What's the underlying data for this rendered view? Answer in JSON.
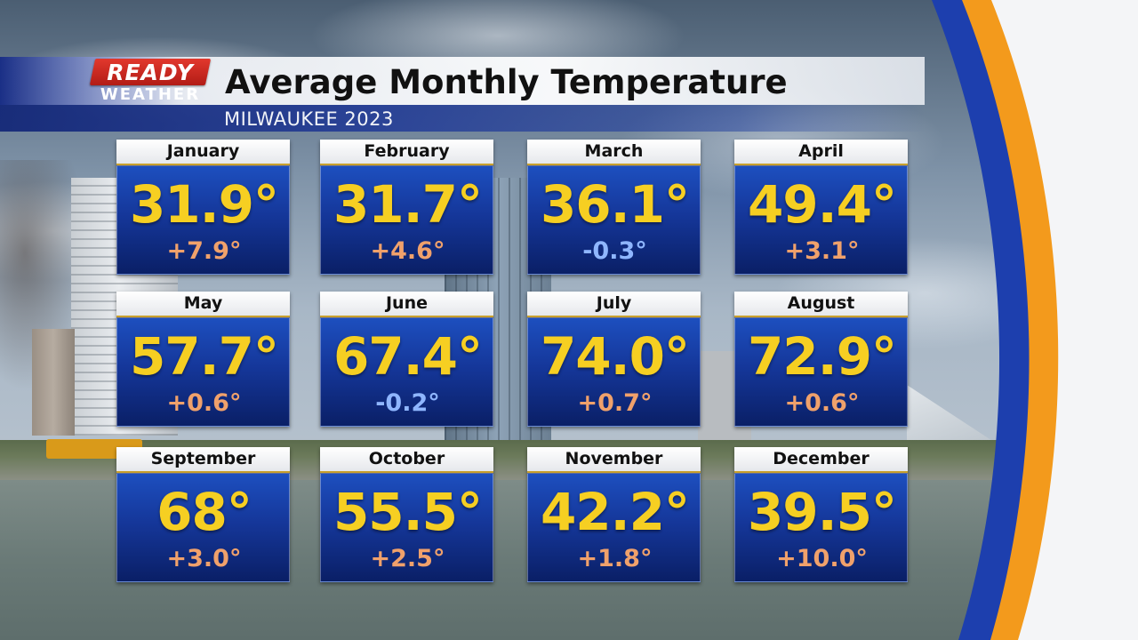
{
  "logo": {
    "line1": "READY",
    "line2": "WEATHER"
  },
  "title": "Average Monthly Temperature",
  "subtitle": "MILWAUKEE 2023",
  "colors": {
    "temp_text": "#f6cf22",
    "departure_warm": "#f0a16b",
    "departure_cool": "#8fb6ff",
    "tile_blue": "#15379a",
    "header_blue": "#1a2f86",
    "logo_red": "#d32b22",
    "swoosh_orange": "#f39a1c",
    "swoosh_blue": "#1d3fae"
  },
  "months": [
    {
      "name": "January",
      "temp": "31.9°",
      "departure": "+7.9°",
      "trend": "warm"
    },
    {
      "name": "February",
      "temp": "31.7°",
      "departure": "+4.6°",
      "trend": "warm"
    },
    {
      "name": "March",
      "temp": "36.1°",
      "departure": "-0.3°",
      "trend": "cool"
    },
    {
      "name": "April",
      "temp": "49.4°",
      "departure": "+3.1°",
      "trend": "warm"
    },
    {
      "name": "May",
      "temp": "57.7°",
      "departure": "+0.6°",
      "trend": "warm"
    },
    {
      "name": "June",
      "temp": "67.4°",
      "departure": "-0.2°",
      "trend": "cool"
    },
    {
      "name": "July",
      "temp": "74.0°",
      "departure": "+0.7°",
      "trend": "warm"
    },
    {
      "name": "August",
      "temp": "72.9°",
      "departure": "+0.6°",
      "trend": "warm"
    },
    {
      "name": "September",
      "temp": "68°",
      "departure": "+3.0°",
      "trend": "warm"
    },
    {
      "name": "October",
      "temp": "55.5°",
      "departure": "+2.5°",
      "trend": "warm"
    },
    {
      "name": "November",
      "temp": "42.2°",
      "departure": "+1.8°",
      "trend": "warm"
    },
    {
      "name": "December",
      "temp": "39.5°",
      "departure": "+10.0°",
      "trend": "warm"
    }
  ]
}
